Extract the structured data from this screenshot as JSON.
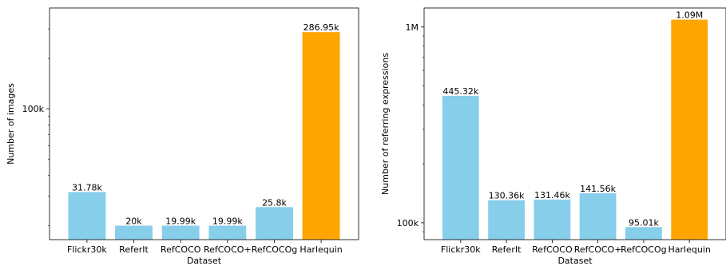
{
  "chart_data": [
    {
      "type": "bar",
      "xlabel": "Dataset",
      "ylabel": "Number of images",
      "yscale": "log",
      "ylim": [
        16500,
        400000
      ],
      "yticks": [
        {
          "value": 100000,
          "label": "100k"
        }
      ],
      "categories": [
        "Flickr30k",
        "ReferIt",
        "RefCOCO",
        "RefCOCO+",
        "RefCOCOg",
        "Harlequin"
      ],
      "values": [
        31780,
        20000,
        19990,
        19990,
        25800,
        286950
      ],
      "value_labels": [
        "31.78k",
        "20k",
        "19.99k",
        "19.99k",
        "25.8k",
        "286.95k"
      ],
      "colors": [
        "#87ceeb",
        "#87ceeb",
        "#87ceeb",
        "#87ceeb",
        "#87ceeb",
        "#ffa500"
      ],
      "grid": false
    },
    {
      "type": "bar",
      "xlabel": "Dataset",
      "ylabel": "Number of referring expressions",
      "yscale": "log",
      "ylim": [
        82000,
        1250000
      ],
      "yticks": [
        {
          "value": 100000,
          "label": "100k"
        },
        {
          "value": 1000000,
          "label": "1M"
        }
      ],
      "categories": [
        "Flickr30k",
        "ReferIt",
        "RefCOCO",
        "RefCOCO+",
        "RefCOCOg",
        "Harlequin"
      ],
      "values": [
        445320,
        130360,
        131460,
        141560,
        95010,
        1090000
      ],
      "value_labels": [
        "445.32k",
        "130.36k",
        "131.46k",
        "141.56k",
        "95.01k",
        "1.09M"
      ],
      "colors": [
        "#87ceeb",
        "#87ceeb",
        "#87ceeb",
        "#87ceeb",
        "#87ceeb",
        "#ffa500"
      ],
      "grid": false
    }
  ]
}
